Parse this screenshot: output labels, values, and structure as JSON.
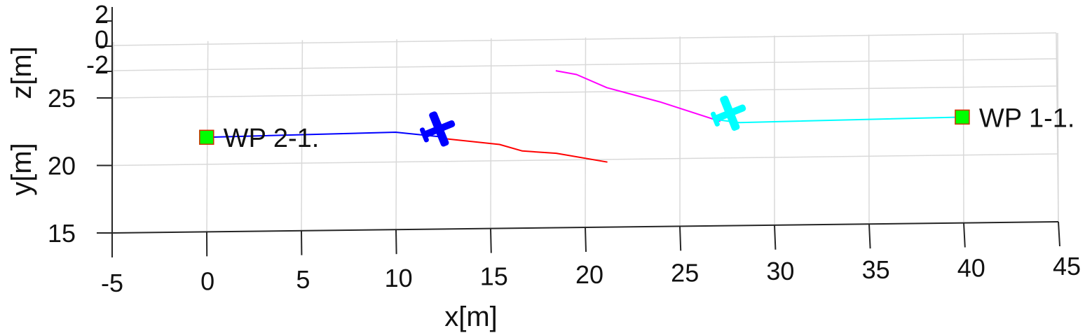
{
  "chart_data": {
    "type": "line",
    "title": "",
    "view": "3d-perspective",
    "xlabel": "x[m]",
    "ylabel": "y[m]",
    "zlabel": "z[m]",
    "xlim": [
      -5,
      45
    ],
    "ylim": [
      15,
      25
    ],
    "zlim": [
      -2,
      2
    ],
    "x_ticks": [
      "-5",
      "0",
      "5",
      "10",
      "15",
      "20",
      "25",
      "30",
      "35",
      "40",
      "45"
    ],
    "y_ticks": [
      "15",
      "20",
      "25"
    ],
    "z_ticks": [
      "2",
      "0",
      "-2"
    ],
    "grid": true,
    "colors": {
      "blue_path": "#0000ff",
      "red_path": "#ff0000",
      "magenta_path": "#ff00ff",
      "cyan_path": "#00ffff",
      "waypoint_fill": "#00ff00",
      "waypoint_edge": "#cc3300",
      "grid": "#d9d9d9",
      "axis": "#262626"
    },
    "series": [
      {
        "color": "#0000ff",
        "x": [
          0,
          10,
          12.5
        ],
        "y": [
          22,
          22.2,
          21.8
        ]
      },
      {
        "color": "#ff0000",
        "x": [
          12.5,
          15.5,
          16.7,
          18.5,
          21.2
        ],
        "y": [
          21.7,
          21.2,
          20.7,
          20.5,
          19.8
        ]
      },
      {
        "color": "#ff00ff",
        "x": [
          18.5,
          19.6,
          21.2,
          24,
          27.2
        ],
        "y": [
          26.6,
          26.3,
          25.3,
          24.2,
          22.7
        ]
      },
      {
        "color": "#00ffff",
        "x": [
          27.2,
          28.2,
          40
        ],
        "y": [
          22.8,
          22.6,
          22.8
        ]
      }
    ],
    "aircraft": [
      {
        "color": "#0000ff",
        "x": 12.3,
        "y": 22.4
      },
      {
        "color": "#00ffff",
        "x": 27.7,
        "y": 23.3
      }
    ],
    "waypoints": [
      {
        "label": "WP 2-1.",
        "x": 0,
        "y": 22
      },
      {
        "label": "WP 1-1.",
        "x": 40,
        "y": 22.8
      }
    ]
  }
}
